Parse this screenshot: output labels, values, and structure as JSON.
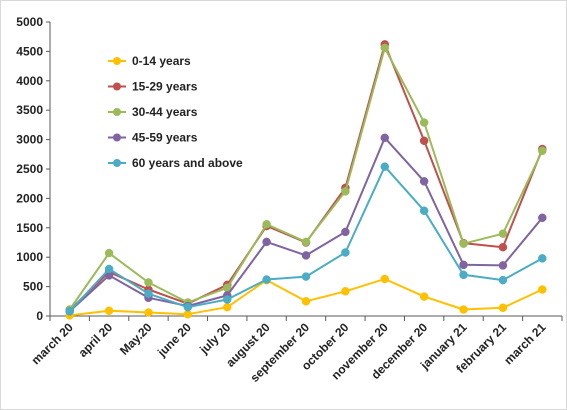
{
  "chart_data": {
    "type": "line",
    "categories": [
      "march 20",
      "april 20",
      "May.20",
      "june 20",
      "july 20",
      "august 20",
      "september 20",
      "october 20",
      "november 20",
      "december 20",
      "january 21",
      "february 21",
      "march 21"
    ],
    "ylim": [
      0,
      5000
    ],
    "yticks": [
      0,
      500,
      1000,
      1500,
      2000,
      2500,
      3000,
      3500,
      4000,
      4500,
      5000
    ],
    "grid": false,
    "legend_position": "top-left",
    "series": [
      {
        "name": "0-14 years",
        "color": "#ffc000",
        "values": [
          10,
          90,
          60,
          30,
          150,
          610,
          250,
          420,
          630,
          330,
          110,
          140,
          450
        ]
      },
      {
        "name": "15-29 years",
        "color": "#c0504d",
        "values": [
          100,
          750,
          450,
          210,
          530,
          1530,
          1250,
          2180,
          4620,
          2980,
          1240,
          1170,
          2840
        ]
      },
      {
        "name": "30-44 years",
        "color": "#9bbb59",
        "values": [
          110,
          1070,
          570,
          230,
          480,
          1560,
          1260,
          2120,
          4560,
          3290,
          1230,
          1400,
          2810
        ]
      },
      {
        "name": "45-59 years",
        "color": "#8064a2",
        "values": [
          80,
          690,
          310,
          170,
          350,
          1260,
          1030,
          1430,
          3030,
          2290,
          870,
          860,
          1670
        ]
      },
      {
        "name": "60 years and above",
        "color": "#4bacc6",
        "values": [
          80,
          800,
          380,
          150,
          280,
          620,
          670,
          1080,
          2540,
          1790,
          700,
          610,
          980
        ]
      }
    ]
  }
}
